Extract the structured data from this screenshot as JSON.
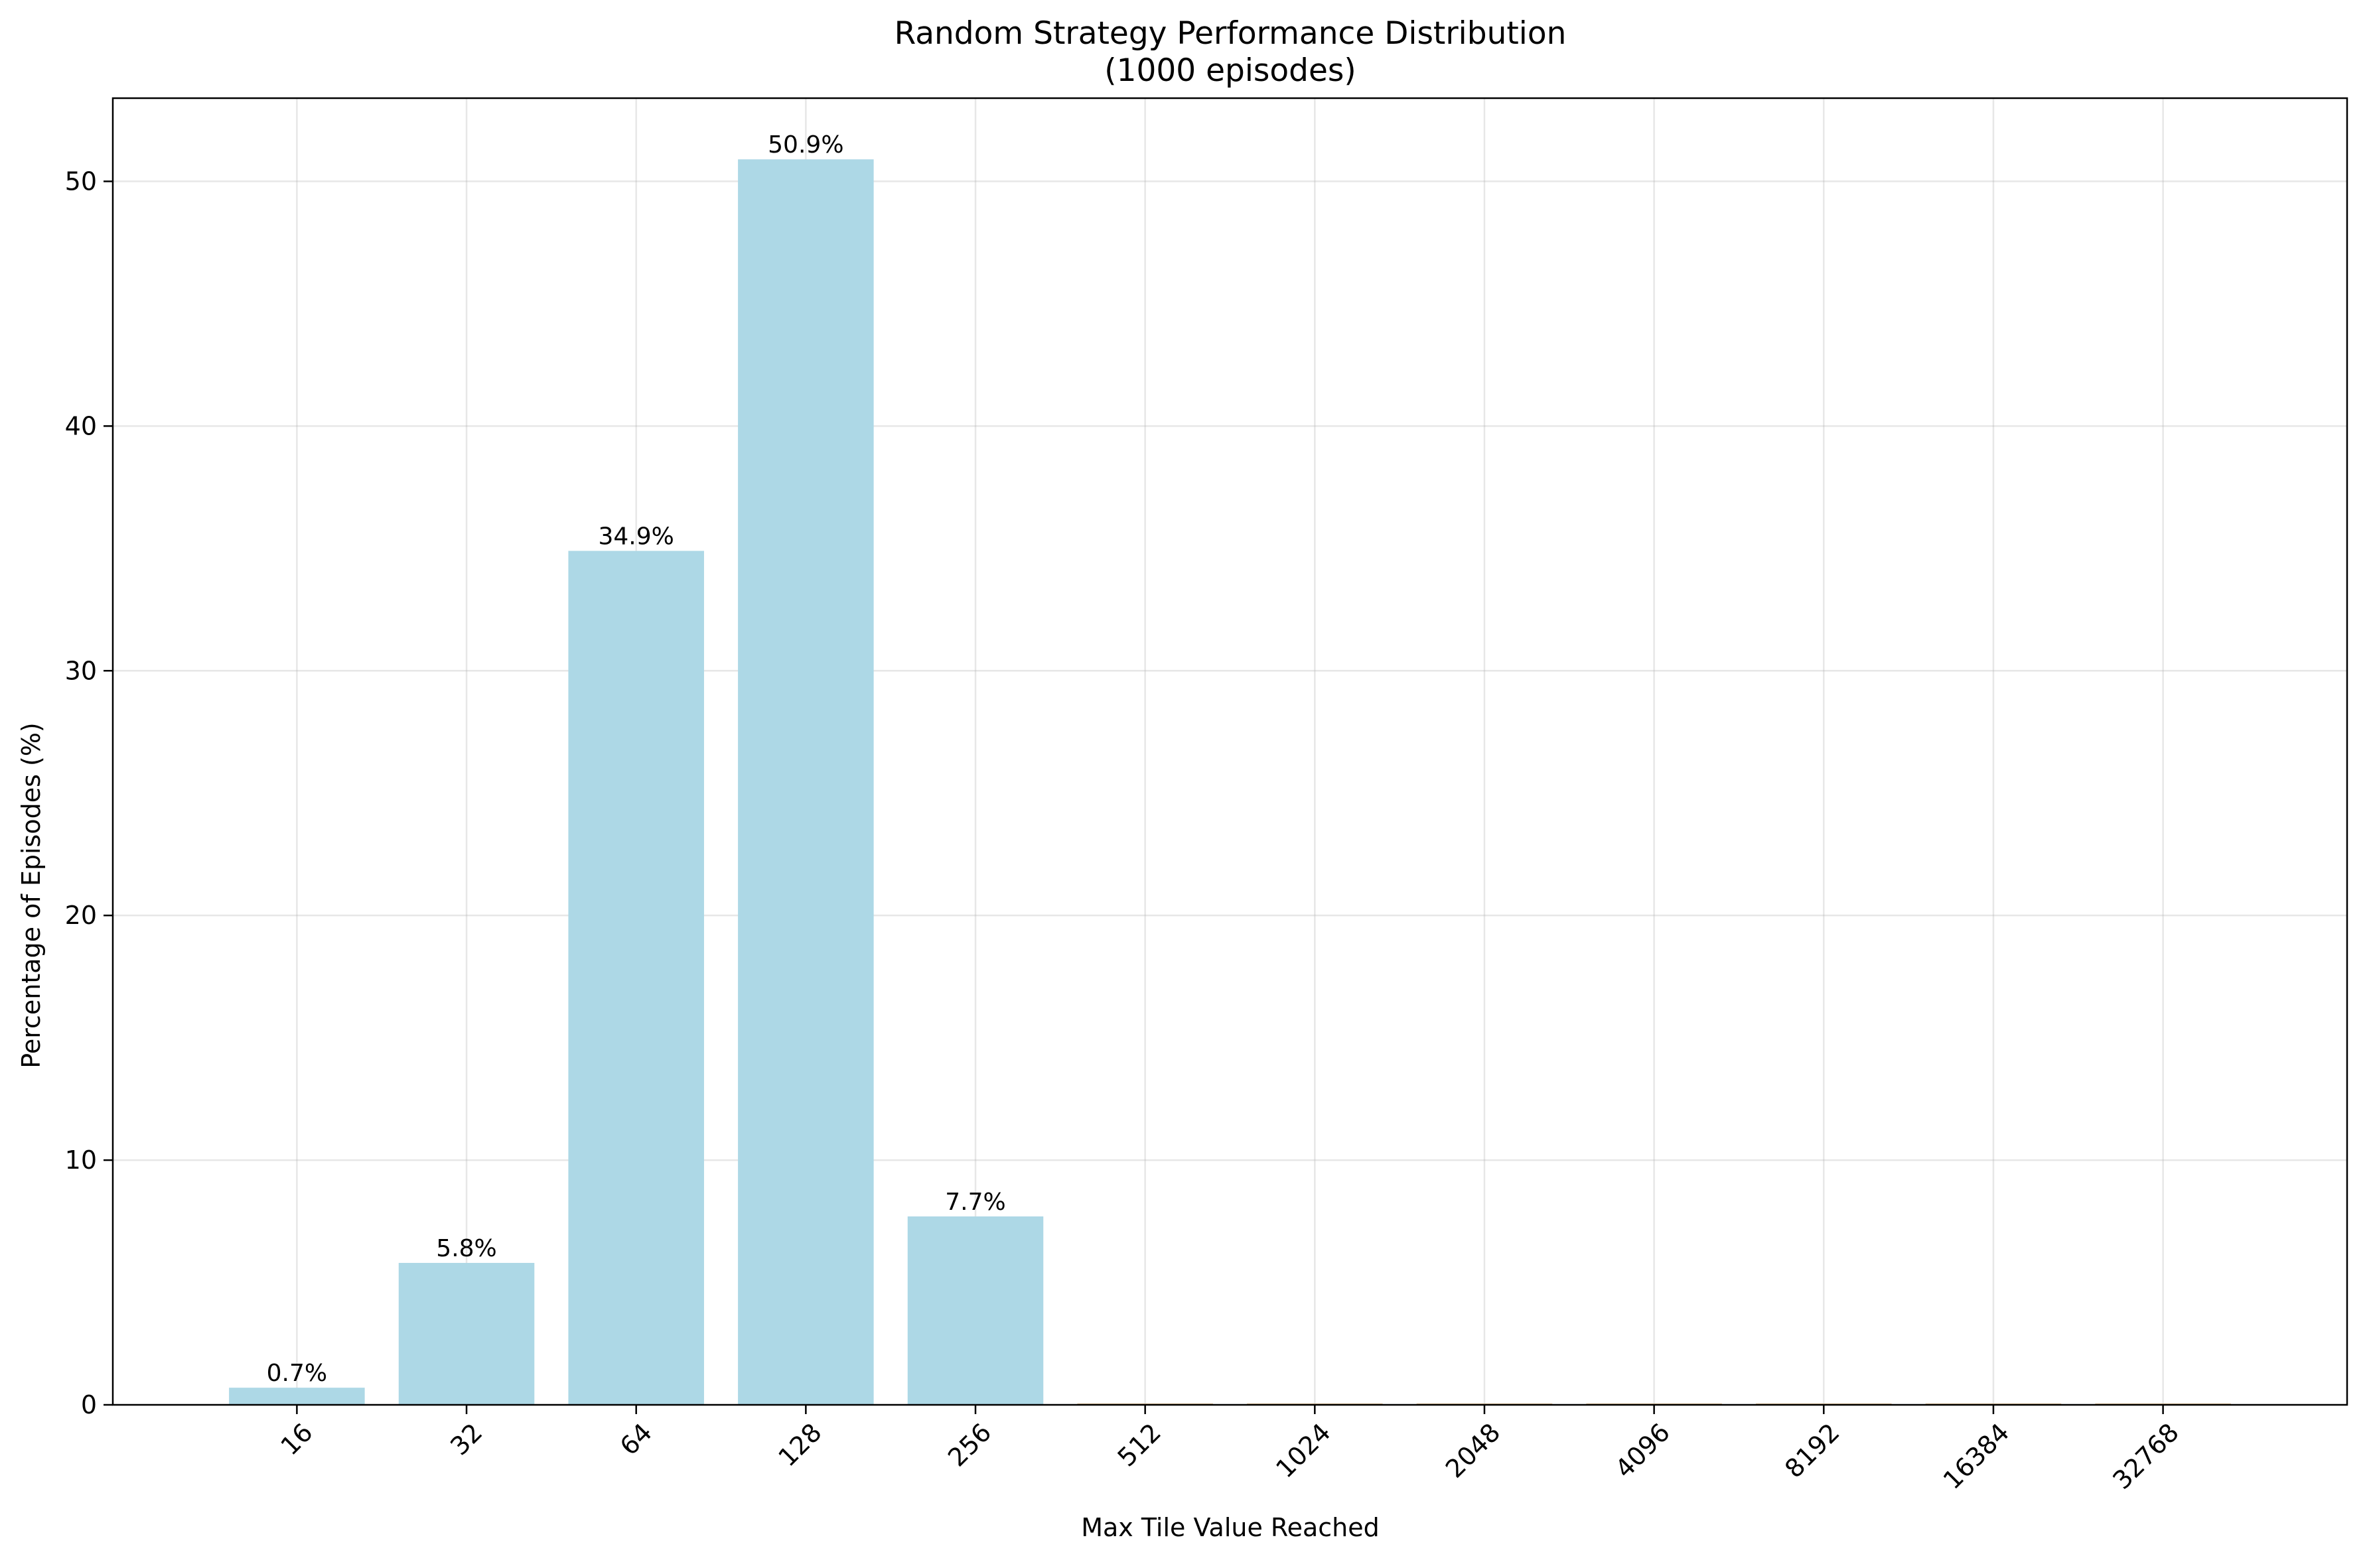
{
  "chart_data": {
    "type": "bar",
    "title": "Random Strategy Performance Distribution",
    "subtitle": "(1000 episodes)",
    "xlabel": "Max Tile Value Reached",
    "ylabel": "Percentage of Episodes (%)",
    "categories": [
      "16",
      "32",
      "64",
      "128",
      "256",
      "512",
      "1024",
      "2048",
      "4096",
      "8192",
      "16384",
      "32768"
    ],
    "values": [
      0.7,
      5.8,
      34.9,
      50.9,
      7.7,
      0,
      0,
      0,
      0,
      0,
      0,
      0
    ],
    "data_labels": [
      "0.7%",
      "5.8%",
      "34.9%",
      "50.9%",
      "7.7%",
      "",
      "",
      "",
      "",
      "",
      "",
      ""
    ],
    "ylim": [
      0,
      53.4
    ],
    "yticks": [
      0,
      10,
      20,
      30,
      40,
      50
    ],
    "grid": true,
    "x_tick_rotation": 45,
    "bar_color": "#add8e6",
    "zero_bar_edge_color": "#d4b483"
  }
}
